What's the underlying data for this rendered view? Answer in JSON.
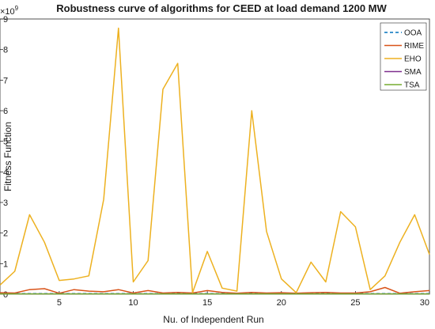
{
  "chart_data": {
    "type": "line",
    "title": "Robustness curve of algorithms for CEED at load demand 1200 MW",
    "xlabel": "Nu. of Independent Run",
    "ylabel": "Fitness Function",
    "y_multiplier": "×10",
    "y_exponent": "9",
    "xlim": [
      1,
      30
    ],
    "ylim": [
      0,
      9
    ],
    "x_ticks": [
      5,
      10,
      15,
      20,
      25,
      30
    ],
    "y_ticks": [
      0,
      1,
      2,
      3,
      4,
      5,
      6,
      7,
      8,
      9
    ],
    "grid": false,
    "legend_position": "top-right",
    "x": [
      1,
      2,
      3,
      4,
      5,
      6,
      7,
      8,
      9,
      10,
      11,
      12,
      13,
      14,
      15,
      16,
      17,
      18,
      19,
      20,
      21,
      22,
      23,
      24,
      25,
      26,
      27,
      28,
      29,
      30
    ],
    "series": [
      {
        "name": "OOA",
        "color": "#0072BD",
        "dashed": true,
        "values": [
          0.02,
          0.02,
          0.02,
          0.02,
          0.02,
          0.02,
          0.02,
          0.02,
          0.02,
          0.02,
          0.02,
          0.02,
          0.02,
          0.02,
          0.02,
          0.02,
          0.02,
          0.02,
          0.02,
          0.02,
          0.02,
          0.02,
          0.02,
          0.02,
          0.02,
          0.02,
          0.02,
          0.02,
          0.02,
          0.02
        ]
      },
      {
        "name": "RIME",
        "color": "#D95319",
        "dashed": false,
        "values": [
          0.05,
          0.04,
          0.15,
          0.18,
          0.03,
          0.15,
          0.1,
          0.08,
          0.15,
          0.04,
          0.12,
          0.04,
          0.06,
          0.04,
          0.12,
          0.06,
          0.03,
          0.06,
          0.04,
          0.05,
          0.03,
          0.05,
          0.06,
          0.04,
          0.04,
          0.08,
          0.22,
          0.03,
          0.08,
          0.12
        ]
      },
      {
        "name": "EHO",
        "color": "#EDB120",
        "dashed": false,
        "values": [
          0.3,
          0.75,
          2.6,
          1.7,
          0.45,
          0.5,
          0.6,
          3.1,
          8.7,
          0.4,
          1.1,
          6.7,
          7.55,
          0.05,
          1.4,
          0.2,
          0.1,
          6.0,
          2.05,
          0.5,
          0.05,
          1.05,
          0.4,
          2.7,
          2.2,
          0.15,
          0.6,
          1.7,
          2.6,
          1.3
        ]
      },
      {
        "name": "SMA",
        "color": "#7E2F8E",
        "dashed": false,
        "values": [
          0.01,
          0.01,
          0.01,
          0.01,
          0.01,
          0.01,
          0.01,
          0.01,
          0.01,
          0.01,
          0.01,
          0.01,
          0.01,
          0.01,
          0.01,
          0.01,
          0.01,
          0.01,
          0.01,
          0.01,
          0.01,
          0.01,
          0.01,
          0.01,
          0.01,
          0.01,
          0.01,
          0.01,
          0.01,
          0.01
        ]
      },
      {
        "name": "TSA",
        "color": "#77AC30",
        "dashed": false,
        "values": [
          0.01,
          0.01,
          0.01,
          0.01,
          0.01,
          0.01,
          0.01,
          0.01,
          0.01,
          0.01,
          0.01,
          0.01,
          0.01,
          0.01,
          0.01,
          0.01,
          0.01,
          0.01,
          0.01,
          0.01,
          0.01,
          0.01,
          0.01,
          0.01,
          0.01,
          0.01,
          0.01,
          0.01,
          0.01,
          0.01
        ]
      }
    ]
  }
}
